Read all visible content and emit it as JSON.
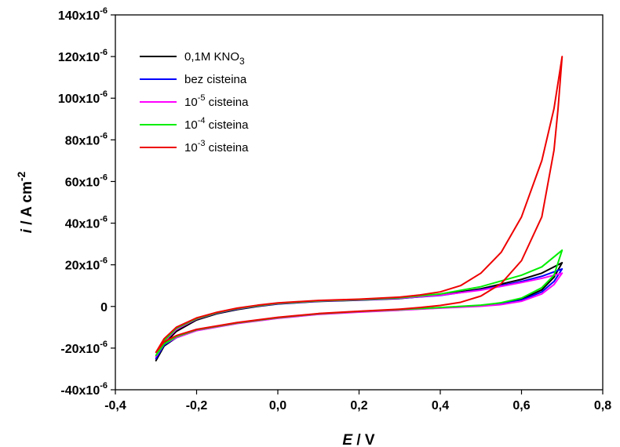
{
  "chart_data": {
    "type": "line",
    "title": "",
    "xlabel": {
      "sym": "E",
      "unit": " / V"
    },
    "ylabel": {
      "sym": "i",
      "unit": " / A cm",
      "sup": "-2"
    },
    "xlim": [
      -0.4,
      0.8
    ],
    "ylim": [
      -4e-05,
      0.00014
    ],
    "x_ticks": [
      {
        "value": -0.4,
        "label": "-0,4"
      },
      {
        "value": -0.2,
        "label": "-0,2"
      },
      {
        "value": 0.0,
        "label": "0,0"
      },
      {
        "value": 0.2,
        "label": "0,2"
      },
      {
        "value": 0.4,
        "label": "0,4"
      },
      {
        "value": 0.6,
        "label": "0,6"
      },
      {
        "value": 0.8,
        "label": "0,8"
      }
    ],
    "y_ticks": [
      {
        "value": 0.00014,
        "base": "140x10",
        "exp": "-6"
      },
      {
        "value": 0.00012,
        "base": "120x10",
        "exp": "-6"
      },
      {
        "value": 0.0001,
        "base": "100x10",
        "exp": "-6"
      },
      {
        "value": 8e-05,
        "base": "80x10",
        "exp": "-6"
      },
      {
        "value": 6e-05,
        "base": "60x10",
        "exp": "-6"
      },
      {
        "value": 4e-05,
        "base": "40x10",
        "exp": "-6"
      },
      {
        "value": 2e-05,
        "base": "20x10",
        "exp": "-6"
      },
      {
        "value": 0,
        "base": "0",
        "exp": ""
      },
      {
        "value": -2e-05,
        "base": "-20x10",
        "exp": "-6"
      },
      {
        "value": -4e-05,
        "base": "-40x10",
        "exp": "-6"
      }
    ],
    "grid": false,
    "legend_position": "top-left",
    "series": [
      {
        "name": "0,1M KNO3",
        "legend": {
          "pre": "0,1M KNO",
          "sub": "3",
          "sup": "",
          "post": ""
        },
        "color": "#000000",
        "upper": [
          [
            -0.3,
            -2.6e-05
          ],
          [
            -0.28,
            -1.8e-05
          ],
          [
            -0.25,
            -1.2e-05
          ],
          [
            -0.2,
            -6.5e-06
          ],
          [
            -0.15,
            -3.5e-06
          ],
          [
            -0.1,
            -1.5e-06
          ],
          [
            -0.05,
            0
          ],
          [
            0.0,
            1.2e-06
          ],
          [
            0.1,
            2.4e-06
          ],
          [
            0.2,
            3e-06
          ],
          [
            0.3,
            3.8e-06
          ],
          [
            0.4,
            5.5e-06
          ],
          [
            0.5,
            8.5e-06
          ],
          [
            0.6,
            1.3e-05
          ],
          [
            0.65,
            1.6e-05
          ],
          [
            0.7,
            2.1e-05
          ]
        ],
        "lower": [
          [
            0.7,
            2.4e-05
          ],
          [
            0.68,
            1.4e-05
          ],
          [
            0.65,
            8e-06
          ],
          [
            0.6,
            3.5e-06
          ],
          [
            0.55,
            1.5e-06
          ],
          [
            0.5,
            5e-07
          ],
          [
            0.4,
            -6e-07
          ],
          [
            0.3,
            -1.6e-06
          ],
          [
            0.2,
            -2.5e-06
          ],
          [
            0.1,
            -3.6e-06
          ],
          [
            0.0,
            -5.5e-06
          ],
          [
            -0.1,
            -8e-06
          ],
          [
            -0.2,
            -1.15e-05
          ],
          [
            -0.25,
            -1.5e-05
          ],
          [
            -0.28,
            -1.9e-05
          ],
          [
            -0.3,
            -2.6e-05
          ]
        ]
      },
      {
        "name": "bez cisteina",
        "legend": {
          "pre": "bez cisteina",
          "sub": "",
          "sup": "",
          "post": ""
        },
        "color": "#0000ff",
        "upper": [
          [
            -0.3,
            -2.5e-05
          ],
          [
            -0.28,
            -1.7e-05
          ],
          [
            -0.25,
            -1.1e-05
          ],
          [
            -0.2,
            -6e-06
          ],
          [
            -0.15,
            -3.2e-06
          ],
          [
            -0.1,
            -1.2e-06
          ],
          [
            -0.05,
            2e-07
          ],
          [
            0.0,
            1.3e-06
          ],
          [
            0.1,
            2.5e-06
          ],
          [
            0.2,
            3.1e-06
          ],
          [
            0.3,
            3.9e-06
          ],
          [
            0.4,
            5.3e-06
          ],
          [
            0.5,
            8e-06
          ],
          [
            0.6,
            1.2e-05
          ],
          [
            0.65,
            1.45e-05
          ],
          [
            0.7,
            1.8e-05
          ]
        ],
        "lower": [
          [
            0.7,
            2e-05
          ],
          [
            0.68,
            1.2e-05
          ],
          [
            0.65,
            7e-06
          ],
          [
            0.6,
            3e-06
          ],
          [
            0.55,
            1.2e-06
          ],
          [
            0.5,
            3e-07
          ],
          [
            0.4,
            -7e-07
          ],
          [
            0.3,
            -1.7e-06
          ],
          [
            0.2,
            -2.6e-06
          ],
          [
            0.1,
            -3.7e-06
          ],
          [
            0.0,
            -5.6e-06
          ],
          [
            -0.1,
            -8.1e-06
          ],
          [
            -0.2,
            -1.15e-05
          ],
          [
            -0.25,
            -1.5e-05
          ],
          [
            -0.28,
            -1.85e-05
          ],
          [
            -0.3,
            -2.5e-05
          ]
        ]
      },
      {
        "name": "10-5 cisteina",
        "legend": {
          "pre": "10",
          "sub": "",
          "sup": "-5",
          "post": " cisteina"
        },
        "color": "#ff00ff",
        "upper": [
          [
            -0.3,
            -2.4e-05
          ],
          [
            -0.28,
            -1.7e-05
          ],
          [
            -0.25,
            -1.1e-05
          ],
          [
            -0.2,
            -6e-06
          ],
          [
            -0.15,
            -3.1e-06
          ],
          [
            -0.1,
            -1.1e-06
          ],
          [
            -0.05,
            3e-07
          ],
          [
            0.0,
            1.4e-06
          ],
          [
            0.1,
            2.6e-06
          ],
          [
            0.2,
            3.2e-06
          ],
          [
            0.3,
            4e-06
          ],
          [
            0.4,
            5.4e-06
          ],
          [
            0.5,
            7.8e-06
          ],
          [
            0.6,
            1.15e-05
          ],
          [
            0.65,
            1.35e-05
          ],
          [
            0.7,
            1.6e-05
          ]
        ],
        "lower": [
          [
            0.7,
            1.75e-05
          ],
          [
            0.68,
            1.05e-05
          ],
          [
            0.65,
            6e-06
          ],
          [
            0.6,
            2.5e-06
          ],
          [
            0.55,
            9e-07
          ],
          [
            0.5,
            1e-07
          ],
          [
            0.4,
            -8e-07
          ],
          [
            0.3,
            -1.8e-06
          ],
          [
            0.2,
            -2.7e-06
          ],
          [
            0.1,
            -3.8e-06
          ],
          [
            0.0,
            -5.7e-06
          ],
          [
            -0.1,
            -8.2e-06
          ],
          [
            -0.2,
            -1.16e-05
          ],
          [
            -0.25,
            -1.5e-05
          ],
          [
            -0.28,
            -1.8e-05
          ],
          [
            -0.3,
            -2.4e-05
          ]
        ]
      },
      {
        "name": "10-4 cisteina",
        "legend": {
          "pre": "10",
          "sub": "",
          "sup": "-4",
          "post": " cisteina"
        },
        "color": "#00ee00",
        "upper": [
          [
            -0.3,
            -2.35e-05
          ],
          [
            -0.28,
            -1.65e-05
          ],
          [
            -0.25,
            -1.05e-05
          ],
          [
            -0.2,
            -5.8e-06
          ],
          [
            -0.15,
            -3e-06
          ],
          [
            -0.1,
            -1e-06
          ],
          [
            -0.05,
            4e-07
          ],
          [
            0.0,
            1.5e-06
          ],
          [
            0.1,
            2.7e-06
          ],
          [
            0.2,
            3.3e-06
          ],
          [
            0.3,
            4.2e-06
          ],
          [
            0.4,
            6e-06
          ],
          [
            0.5,
            9.5e-06
          ],
          [
            0.6,
            1.5e-05
          ],
          [
            0.65,
            1.9e-05
          ],
          [
            0.7,
            2.7e-05
          ]
        ],
        "lower": [
          [
            0.7,
            2.5e-05
          ],
          [
            0.68,
            1.5e-05
          ],
          [
            0.65,
            9e-06
          ],
          [
            0.6,
            4e-06
          ],
          [
            0.55,
            1.8e-06
          ],
          [
            0.5,
            6e-07
          ],
          [
            0.4,
            -5e-07
          ],
          [
            0.3,
            -1.5e-06
          ],
          [
            0.2,
            -2.4e-06
          ],
          [
            0.1,
            -3.5e-06
          ],
          [
            0.0,
            -5.4e-06
          ],
          [
            -0.1,
            -7.9e-06
          ],
          [
            -0.2,
            -1.12e-05
          ],
          [
            -0.25,
            -1.45e-05
          ],
          [
            -0.28,
            -1.8e-05
          ],
          [
            -0.3,
            -2.35e-05
          ]
        ]
      },
      {
        "name": "10-3 cisteina",
        "legend": {
          "pre": "10",
          "sub": "",
          "sup": "-3",
          "post": " cisteina"
        },
        "color": "#ee0000",
        "upper": [
          [
            -0.3,
            -2.2e-05
          ],
          [
            -0.28,
            -1.55e-05
          ],
          [
            -0.25,
            -1e-05
          ],
          [
            -0.2,
            -5.5e-06
          ],
          [
            -0.15,
            -2.8e-06
          ],
          [
            -0.1,
            -8e-07
          ],
          [
            -0.05,
            6e-07
          ],
          [
            0.0,
            1.7e-06
          ],
          [
            0.1,
            2.9e-06
          ],
          [
            0.2,
            3.5e-06
          ],
          [
            0.3,
            4.5e-06
          ],
          [
            0.35,
            5.5e-06
          ],
          [
            0.4,
            7e-06
          ],
          [
            0.45,
            1e-05
          ],
          [
            0.5,
            1.6e-05
          ],
          [
            0.55,
            2.6e-05
          ],
          [
            0.6,
            4.3e-05
          ],
          [
            0.65,
            7e-05
          ],
          [
            0.68,
            9.5e-05
          ],
          [
            0.7,
            0.00012
          ]
        ],
        "lower": [
          [
            0.7,
            0.000115
          ],
          [
            0.69,
            9.5e-05
          ],
          [
            0.68,
            7.5e-05
          ],
          [
            0.65,
            4.3e-05
          ],
          [
            0.6,
            2.2e-05
          ],
          [
            0.55,
            1.1e-05
          ],
          [
            0.5,
            5e-06
          ],
          [
            0.45,
            2e-06
          ],
          [
            0.4,
            5e-07
          ],
          [
            0.35,
            -5e-07
          ],
          [
            0.3,
            -1.3e-06
          ],
          [
            0.2,
            -2.3e-06
          ],
          [
            0.1,
            -3.4e-06
          ],
          [
            0.0,
            -5.2e-06
          ],
          [
            -0.1,
            -7.7e-06
          ],
          [
            -0.2,
            -1.1e-05
          ],
          [
            -0.25,
            -1.4e-05
          ],
          [
            -0.28,
            -1.7e-05
          ],
          [
            -0.3,
            -2.2e-05
          ]
        ]
      }
    ]
  }
}
